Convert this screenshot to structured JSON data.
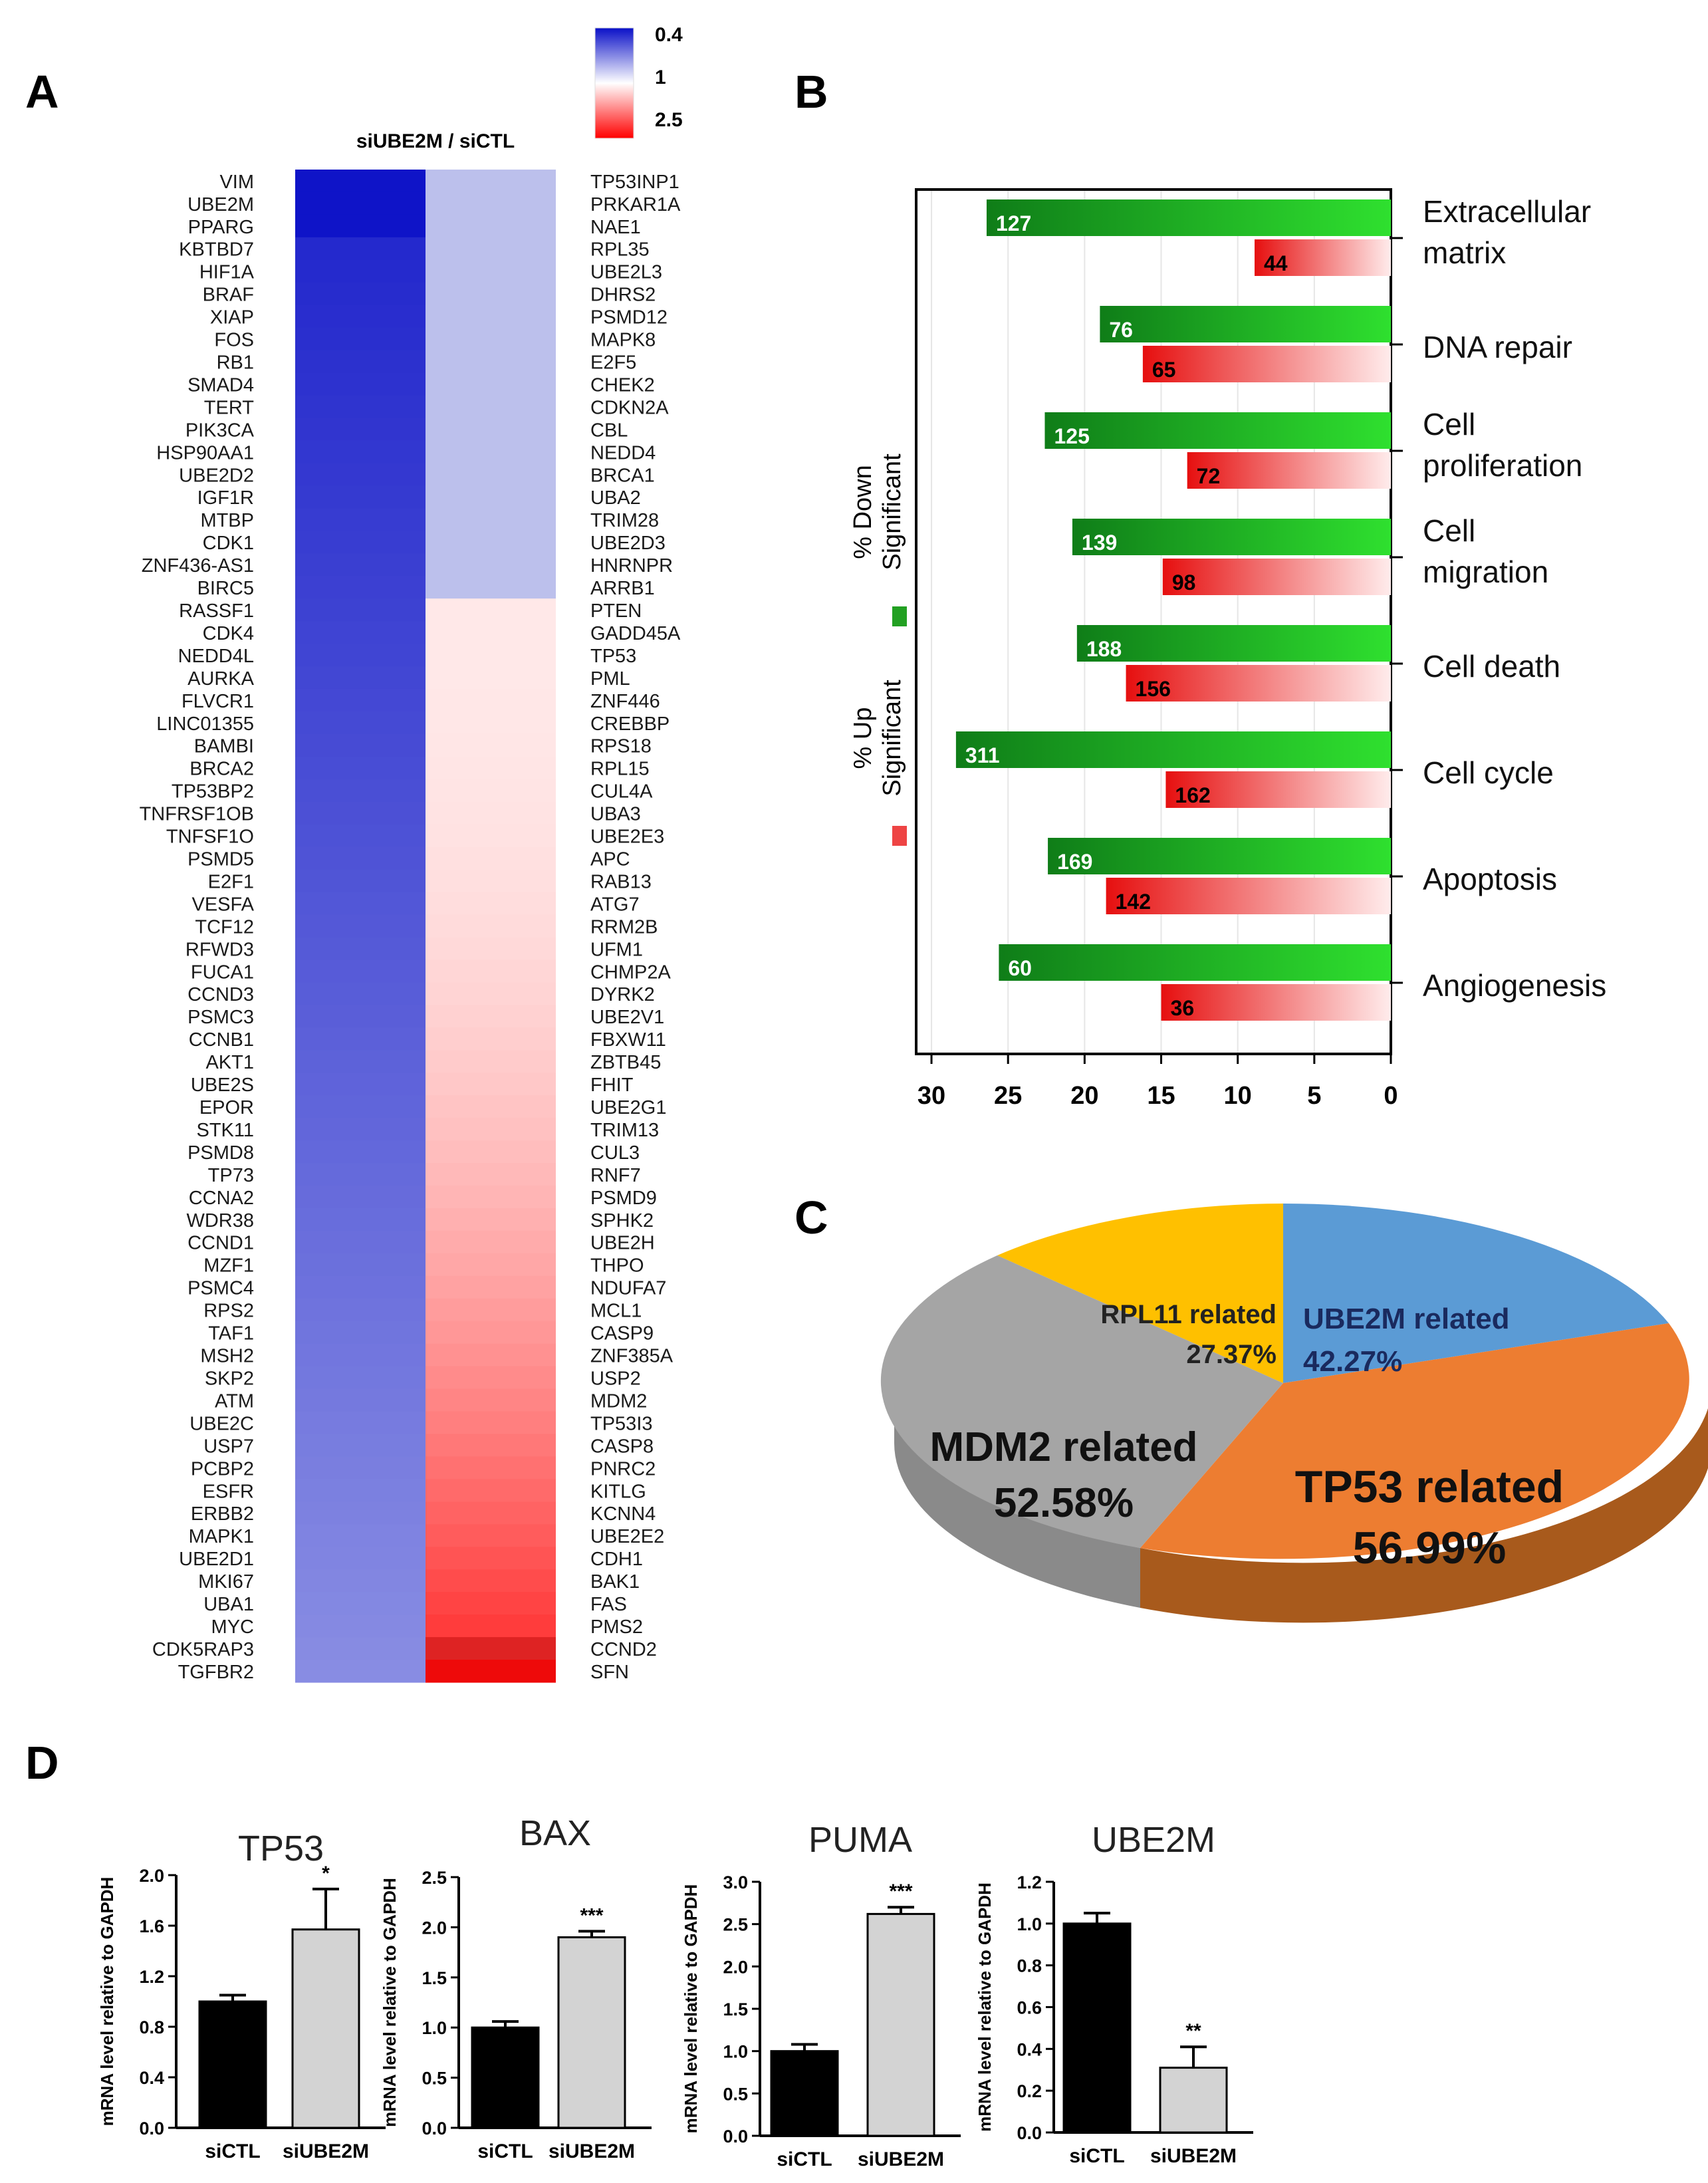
{
  "figure": {
    "panel_labels": [
      "A",
      "B",
      "C",
      "D"
    ]
  },
  "chart_data": [
    {
      "panel": "A",
      "type": "heatmap",
      "title": "siUBE2M / siCTL",
      "colorbar": {
        "ticks": [
          0.4,
          1,
          2.5
        ],
        "colors": [
          "#0a10c8",
          "#ffffff",
          "#ff0000"
        ]
      },
      "genes_col1": [
        "VIM",
        "UBE2M",
        "PPARG",
        "KBTBD7",
        "HIF1A",
        "BRAF",
        "XIAP",
        "FOS",
        "RB1",
        "SMAD4",
        "TERT",
        "PIK3CA",
        "HSP90AA1",
        "UBE2D2",
        "IGF1R",
        "MTBP",
        "CDK1",
        "ZNF436-AS1",
        "BIRC5",
        "RASSF1",
        "CDK4",
        "NEDD4L",
        "AURKA",
        "FLVCR1",
        "LINC01355",
        "BAMBI",
        "BRCA2",
        "TP53BP2",
        "TNFRSF1OB",
        "TNFSF1O",
        "PSMD5",
        "E2F1",
        "VESFA",
        "TCF12",
        "RFWD3",
        "FUCA1",
        "CCND3",
        "PSMC3",
        "CCNB1",
        "AKT1",
        "UBE2S",
        "EPOR",
        "STK11",
        "PSMD8",
        "TP73",
        "CCNA2",
        "WDR38",
        "CCND1",
        "MZF1",
        "PSMC4",
        "RPS2",
        "TAF1",
        "MSH2",
        "SKP2",
        "ATM",
        "UBE2C",
        "USP7",
        "PCBP2",
        "ESFR",
        "ERBB2",
        "MAPK1",
        "UBE2D1",
        "MKI67",
        "UBA1",
        "MYC",
        "CDK5RAP3",
        "TGFBR2"
      ],
      "genes_col2": [
        "TP53INP1",
        "PRKAR1A",
        "NAE1",
        "RPL35",
        "UBE2L3",
        "DHRS2",
        "PSMD12",
        "MAPK8",
        "E2F5",
        "CHEK2",
        "CDKN2A",
        "CBL",
        "NEDD4",
        "BRCA1",
        "UBA2",
        "TRIM28",
        "UBE2D3",
        "HNRNPR",
        "ARRB1",
        "PTEN",
        "GADD45A",
        "TP53",
        "PML",
        "ZNF446",
        "CREBBP",
        "RPS18",
        "RPL15",
        "CUL4A",
        "UBA3",
        "UBE2E3",
        "APC",
        "RAB13",
        "ATG7",
        "RRM2B",
        "UFM1",
        "CHMP2A",
        "DYRK2",
        "UBE2V1",
        "FBXW11",
        "ZBTB45",
        "FHIT",
        "UBE2G1",
        "TRIM13",
        "CUL3",
        "RNF7",
        "PSMD9",
        "SPHK2",
        "UBE2H",
        "THPO",
        "NDUFA7",
        "MCL1",
        "CASP9",
        "ZNF385A",
        "USP2",
        "MDM2",
        "TP53I3",
        "CASP8",
        "PNRC2",
        "KITLG",
        "KCNN4",
        "UBE2E2",
        "CDH1",
        "BAK1",
        "FAS",
        "PMS2",
        "CCND2",
        "SFN"
      ]
    },
    {
      "panel": "B",
      "type": "bar",
      "orientation": "horizontal",
      "categories": [
        "Extracellular matrix",
        "DNA repair",
        "Cell proliferation",
        "Cell migration",
        "Cell death",
        "Cell cycle",
        "Apoptosis",
        "Angiogenesis"
      ],
      "category_lines": [
        [
          "Extracellular",
          "matrix"
        ],
        [
          "DNA repair"
        ],
        [
          "Cell",
          "proliferation"
        ],
        [
          "Cell",
          "migration"
        ],
        [
          "Cell death"
        ],
        [
          "Cell cycle"
        ],
        [
          "Apoptosis"
        ],
        [
          "Angiogenesis"
        ]
      ],
      "series": [
        {
          "name": "% Down Significant",
          "color": "#1ea01e",
          "percent": [
            26.4,
            19.0,
            22.6,
            20.8,
            20.5,
            28.4,
            22.4,
            25.6
          ],
          "counts": [
            127,
            76,
            125,
            139,
            188,
            311,
            169,
            60
          ]
        },
        {
          "name": "% Up Significant",
          "color": "#e81818",
          "percent": [
            8.9,
            16.2,
            13.3,
            14.9,
            17.3,
            14.7,
            18.6,
            15.0
          ],
          "counts": [
            44,
            65,
            72,
            98,
            156,
            162,
            142,
            36
          ]
        }
      ],
      "xlim": [
        31,
        0
      ],
      "xticks": [
        30,
        25,
        20,
        15,
        10,
        5,
        0
      ],
      "legend_labels": [
        [
          "% Down",
          "Significant"
        ],
        [
          "% Up",
          "Significant"
        ]
      ]
    },
    {
      "panel": "C",
      "type": "pie",
      "slices": [
        {
          "label": "UBE2M related",
          "value": "42.27%",
          "color": "#5b9bd5"
        },
        {
          "label": "TP53 related",
          "value": "56.99%",
          "color": "#ed7d31"
        },
        {
          "label": "MDM2 related",
          "value": "52.58%",
          "color": "#a5a5a5"
        },
        {
          "label": "RPL11 related",
          "value": "27.37%",
          "color": "#ffc000"
        }
      ]
    },
    {
      "panel": "D",
      "type": "bar",
      "ylabel": "mRNA level relative to GAPDH",
      "categories": [
        "siCTL",
        "siUBE2M"
      ],
      "subplots": [
        {
          "title": "TP53",
          "values": [
            1.0,
            1.57
          ],
          "errors": [
            0.05,
            0.32
          ],
          "ylim": [
            0,
            2.0
          ],
          "yticks": [
            "0.0",
            "0.4",
            "0.8",
            "1.2",
            "1.6",
            "2.0"
          ],
          "sig": "*"
        },
        {
          "title": "BAX",
          "values": [
            1.0,
            1.9
          ],
          "errors": [
            0.06,
            0.06
          ],
          "ylim": [
            0,
            2.5
          ],
          "yticks": [
            "0.0",
            "0.5",
            "1.0",
            "1.5",
            "2.0",
            "2.5"
          ],
          "sig": "***"
        },
        {
          "title": "PUMA",
          "values": [
            1.0,
            2.62
          ],
          "errors": [
            0.08,
            0.08
          ],
          "ylim": [
            0,
            3.0
          ],
          "yticks": [
            "0.0",
            "0.5",
            "1.0",
            "1.5",
            "2.0",
            "2.5",
            "3.0"
          ],
          "sig": "***"
        },
        {
          "title": "UBE2M",
          "values": [
            1.0,
            0.31
          ],
          "errors": [
            0.05,
            0.1
          ],
          "ylim": [
            0,
            1.2
          ],
          "yticks": [
            "0.0",
            "0.2",
            "0.4",
            "0.6",
            "0.8",
            "1.0",
            "1.2"
          ],
          "sig": "**"
        }
      ]
    }
  ]
}
